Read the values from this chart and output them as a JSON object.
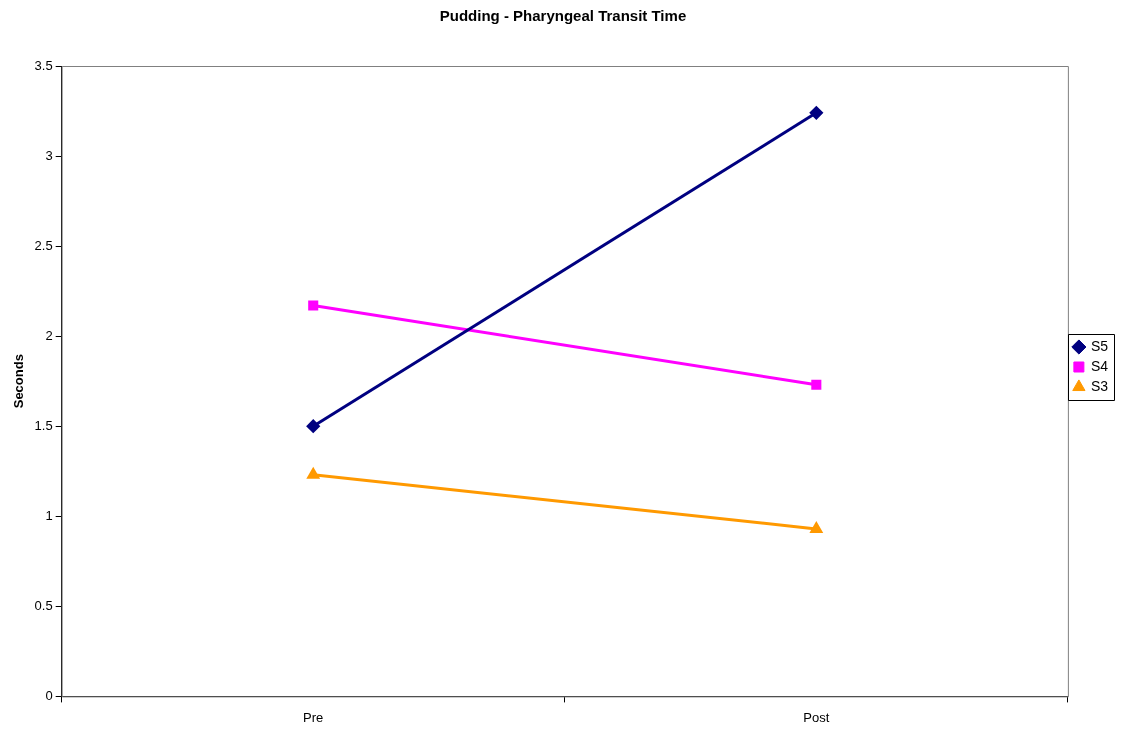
{
  "chart_data": {
    "type": "line",
    "title": "Pudding - Pharyngeal Transit Time",
    "ylabel": "Seconds",
    "categories": [
      "Pre",
      "Post"
    ],
    "series": [
      {
        "name": "S5",
        "color": "#000080",
        "values": [
          1.5,
          3.24
        ],
        "marker": "diamond"
      },
      {
        "name": "S4",
        "color": "#ff00ff",
        "values": [
          2.17,
          1.73
        ],
        "marker": "square"
      },
      {
        "name": "S3",
        "color": "#ff9900",
        "values": [
          1.23,
          0.93
        ],
        "marker": "triangle"
      }
    ],
    "ylim": [
      0,
      3.5
    ],
    "yticks": [
      0,
      0.5,
      1,
      1.5,
      2,
      2.5,
      3,
      3.5
    ],
    "grid": false,
    "legend": "right"
  }
}
